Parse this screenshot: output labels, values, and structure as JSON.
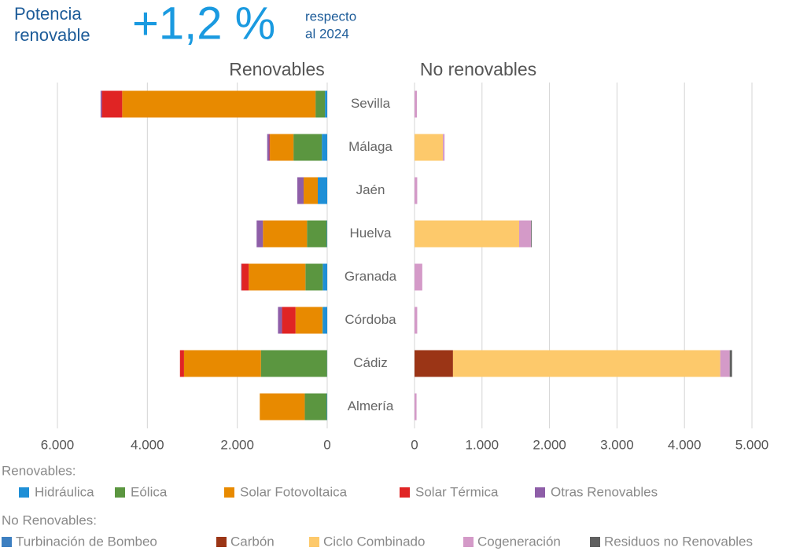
{
  "header": {
    "label": [
      "Potencia",
      "renovable"
    ],
    "change": "+1,2 %",
    "note": [
      "respecto",
      "al 2024"
    ]
  },
  "chart_data": [
    {
      "type": "bar",
      "orientation": "horizontal",
      "x_reversed": true,
      "title": "Renovables",
      "legend_title": "Renovables:",
      "categories": [
        "Sevilla",
        "Málaga",
        "Jaén",
        "Huelva",
        "Granada",
        "Córdoba",
        "Cádiz",
        "Almería"
      ],
      "series": [
        {
          "name": "Hidráulica",
          "color": "#1f8fd6",
          "values": [
            50,
            120,
            210,
            10,
            100,
            100,
            5,
            10
          ]
        },
        {
          "name": "Eólica",
          "color": "#5b9640",
          "values": [
            210,
            630,
            0,
            440,
            385,
            10,
            1470,
            490
          ]
        },
        {
          "name": "Solar Fotovoltaica",
          "color": "#e88a00",
          "values": [
            4300,
            525,
            315,
            980,
            1260,
            595,
            1710,
            1000
          ]
        },
        {
          "name": "Solar Térmica",
          "color": "#e02424",
          "values": [
            450,
            10,
            0,
            0,
            160,
            300,
            90,
            0
          ]
        },
        {
          "name": "Otras Renovables",
          "color": "#8e5ea8",
          "values": [
            30,
            50,
            140,
            140,
            10,
            90,
            0,
            0
          ]
        }
      ],
      "xlim": [
        0,
        6000
      ],
      "xticks": [
        {
          "value": 6000,
          "label": "6.000"
        },
        {
          "value": 4000,
          "label": "4.000"
        },
        {
          "value": 2000,
          "label": "2.000"
        },
        0
      ],
      "grid": true
    },
    {
      "type": "bar",
      "orientation": "horizontal",
      "x_reversed": false,
      "title": "No renovables",
      "legend_title": "No Renovables:",
      "series": [
        {
          "name": "Turbinación de Bombeo",
          "color": "#3d7fc1",
          "values": [
            0,
            0,
            0,
            0,
            0,
            0,
            0,
            0
          ]
        },
        {
          "name": "Carbón",
          "color": "#9b3516",
          "values": [
            0,
            0,
            0,
            0,
            0,
            0,
            570,
            0
          ]
        },
        {
          "name": "Ciclo Combinado",
          "color": "#fdc96b",
          "values": [
            0,
            420,
            0,
            1550,
            0,
            0,
            3960,
            0
          ]
        },
        {
          "name": "Cogeneración",
          "color": "#d49ac8",
          "values": [
            35,
            25,
            40,
            175,
            115,
            40,
            140,
            30
          ]
        },
        {
          "name": "Residuos no Renovables",
          "color": "#606060",
          "values": [
            0,
            0,
            0,
            10,
            0,
            0,
            35,
            0
          ]
        }
      ],
      "xlim": [
        0,
        5000
      ],
      "xticks": [
        0,
        {
          "value": 1000,
          "label": "1.000"
        },
        {
          "value": 2000,
          "label": "2.000"
        },
        {
          "value": 3000,
          "label": "3.000"
        },
        {
          "value": 4000,
          "label": "4.000"
        },
        {
          "value": 5000,
          "label": "5.000"
        }
      ],
      "grid": true
    }
  ]
}
